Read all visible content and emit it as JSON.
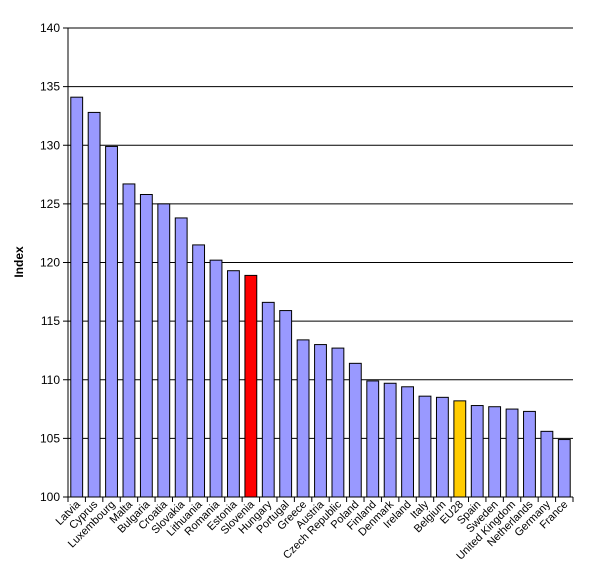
{
  "chart_data": {
    "type": "bar",
    "title": "",
    "xlabel": "",
    "ylabel": "Index",
    "ylim": [
      100,
      140
    ],
    "yticks": [
      100,
      105,
      110,
      115,
      120,
      125,
      130,
      135,
      140
    ],
    "grid": true,
    "legend": "none",
    "categories": [
      "Latvia",
      "Cyprus",
      "Luxembourg",
      "Malta",
      "Bulgaria",
      "Croatia",
      "Slovakia",
      "Lithuania",
      "Romania",
      "Estonia",
      "Slovenia",
      "Hungary",
      "Portugal",
      "Greece",
      "Austria",
      "Czech Republic",
      "Poland",
      "Finland",
      "Denmark",
      "Ireland",
      "Italy",
      "Belgium",
      "EU28",
      "Spain",
      "Sweden",
      "United Kingdom",
      "Netherlands",
      "Germany",
      "France"
    ],
    "values": [
      134.1,
      132.8,
      129.9,
      126.7,
      125.8,
      125.0,
      123.8,
      121.5,
      120.2,
      119.3,
      118.9,
      116.6,
      115.9,
      113.4,
      113.0,
      112.7,
      111.4,
      109.9,
      109.7,
      109.4,
      108.6,
      108.5,
      108.2,
      107.8,
      107.7,
      107.5,
      107.3,
      105.6,
      104.9
    ],
    "colors": {
      "default": "#9999ff",
      "highlight": "#ff0000",
      "eu": "#ffcc00",
      "grid": "#000000",
      "axis": "#000000"
    },
    "highlight_category": "Slovenia",
    "eu_category": "EU28"
  }
}
